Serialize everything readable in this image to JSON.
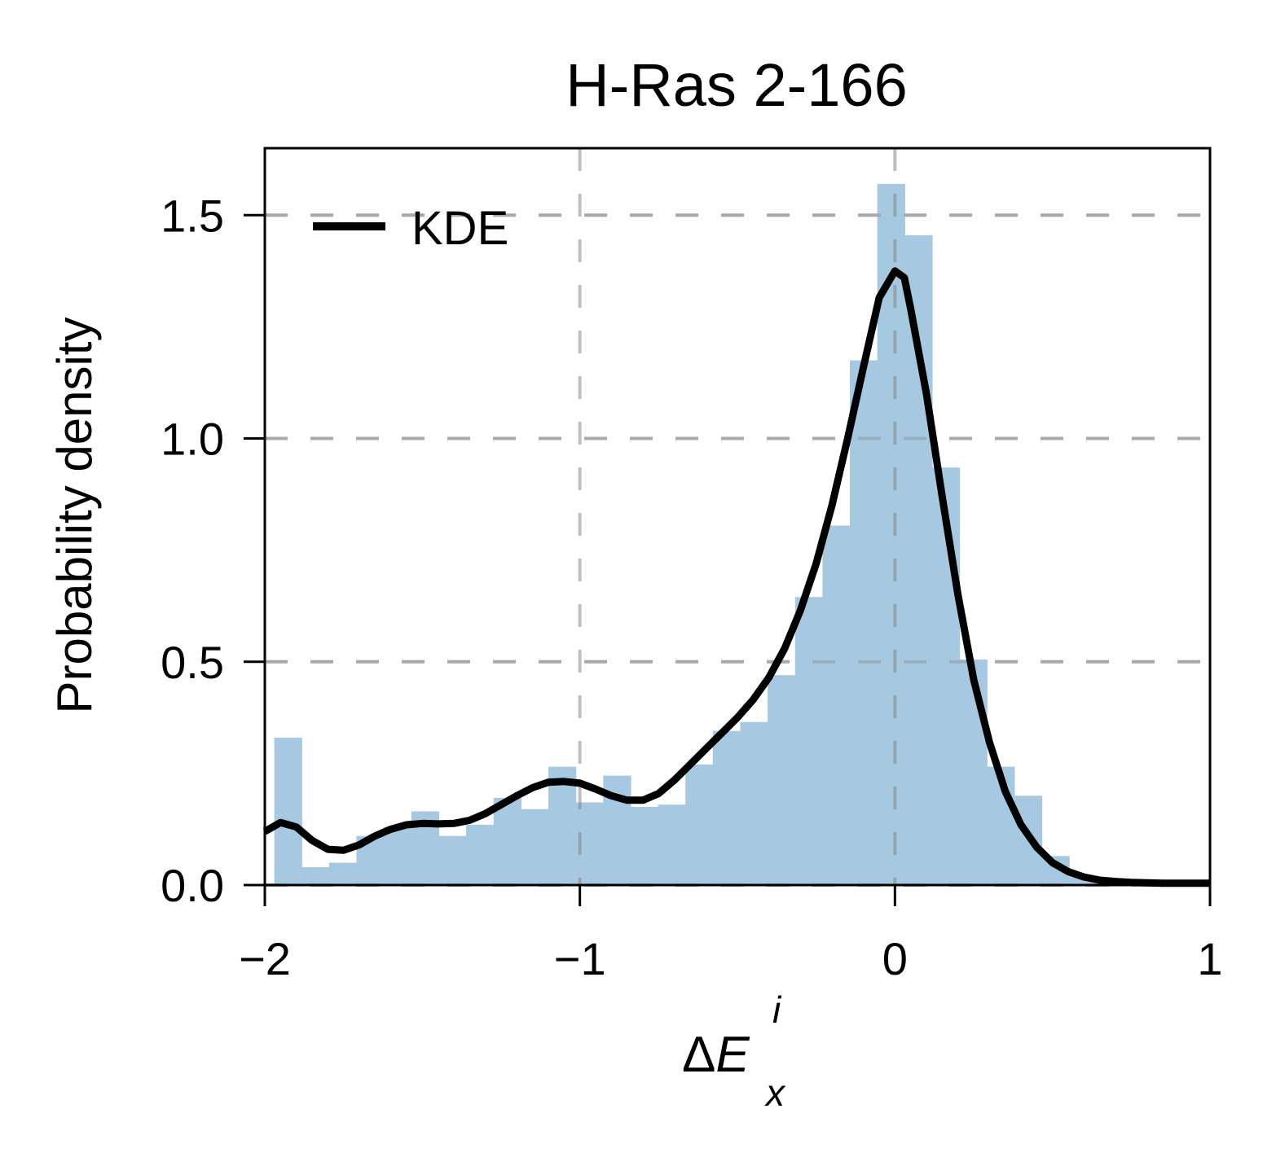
{
  "chart_data": {
    "type": "bar",
    "title": "H-Ras 2-166",
    "xlabel": {
      "delta": "Δ",
      "symbol": "E",
      "subscript": "x",
      "superscript": "i"
    },
    "ylabel": "Probability density",
    "xlim": [
      -2,
      1
    ],
    "ylim": [
      0,
      1.65
    ],
    "x_ticks": [
      -2,
      -1,
      0,
      1
    ],
    "x_tick_labels": [
      "−2",
      "−1",
      "0",
      "1"
    ],
    "y_ticks": [
      0.0,
      0.5,
      1.0,
      1.5
    ],
    "y_tick_labels": [
      "0.0",
      "0.5",
      "1.0",
      "1.5"
    ],
    "grid": true,
    "legend": {
      "position": "top-left",
      "entries": [
        "KDE"
      ]
    },
    "colors": {
      "histogram": "#a6c8e0",
      "kde": "#000000",
      "grid": "#c0c0c0"
    },
    "histogram": {
      "bin_edges": [
        -1.97,
        -1.883,
        -1.796,
        -1.709,
        -1.622,
        -1.535,
        -1.448,
        -1.361,
        -1.274,
        -1.187,
        -1.1,
        -1.013,
        -0.926,
        -0.839,
        -0.752,
        -0.665,
        -0.578,
        -0.491,
        -0.404,
        -0.317,
        -0.23,
        -0.143,
        -0.056,
        0.031,
        0.118,
        0.205,
        0.292,
        0.379,
        0.466,
        0.553,
        0.64,
        0.727
      ],
      "density": [
        0.33,
        0.04,
        0.05,
        0.11,
        0.13,
        0.165,
        0.11,
        0.135,
        0.195,
        0.17,
        0.265,
        0.185,
        0.245,
        0.175,
        0.18,
        0.27,
        0.345,
        0.365,
        0.47,
        0.645,
        0.805,
        1.175,
        1.57,
        1.455,
        0.935,
        0.505,
        0.265,
        0.2,
        0.065,
        0.02,
        0.01
      ]
    },
    "series": [
      {
        "name": "KDE",
        "x": [
          -2.0,
          -1.95,
          -1.9,
          -1.85,
          -1.8,
          -1.75,
          -1.7,
          -1.65,
          -1.6,
          -1.55,
          -1.5,
          -1.45,
          -1.4,
          -1.35,
          -1.3,
          -1.25,
          -1.2,
          -1.15,
          -1.1,
          -1.05,
          -1.0,
          -0.95,
          -0.9,
          -0.85,
          -0.8,
          -0.75,
          -0.7,
          -0.65,
          -0.6,
          -0.55,
          -0.5,
          -0.45,
          -0.4,
          -0.35,
          -0.3,
          -0.25,
          -0.2,
          -0.15,
          -0.1,
          -0.05,
          0.0,
          0.03,
          0.05,
          0.1,
          0.15,
          0.2,
          0.25,
          0.3,
          0.35,
          0.4,
          0.45,
          0.5,
          0.55,
          0.6,
          0.65,
          0.7,
          0.75,
          0.8,
          0.85,
          0.9,
          0.95,
          1.0
        ],
        "y": [
          0.12,
          0.14,
          0.13,
          0.1,
          0.08,
          0.078,
          0.09,
          0.11,
          0.125,
          0.135,
          0.138,
          0.137,
          0.138,
          0.145,
          0.16,
          0.18,
          0.2,
          0.218,
          0.23,
          0.232,
          0.228,
          0.215,
          0.2,
          0.19,
          0.19,
          0.205,
          0.235,
          0.27,
          0.305,
          0.34,
          0.375,
          0.415,
          0.465,
          0.53,
          0.615,
          0.72,
          0.85,
          1.0,
          1.16,
          1.315,
          1.375,
          1.36,
          1.29,
          1.1,
          0.87,
          0.65,
          0.46,
          0.32,
          0.21,
          0.135,
          0.085,
          0.05,
          0.03,
          0.018,
          0.011,
          0.008,
          0.006,
          0.005,
          0.004,
          0.004,
          0.004,
          0.004
        ]
      }
    ]
  }
}
